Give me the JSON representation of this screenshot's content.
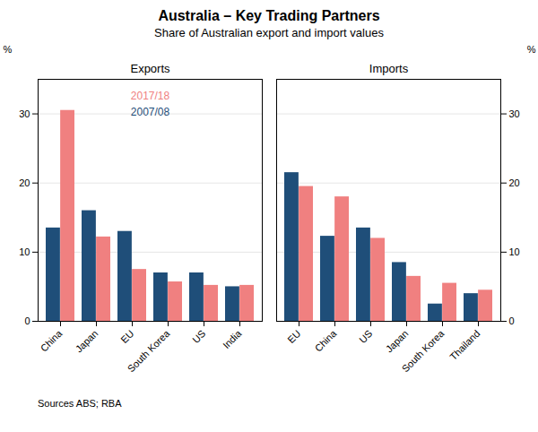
{
  "title": "Australia – Key Trading Partners",
  "subtitle": "Share of Australian export and import values",
  "source": "Sources ABS; RBA",
  "chart_data": [
    {
      "type": "bar",
      "title": "Exports",
      "ylabel": "%",
      "categories": [
        "China",
        "Japan",
        "EU",
        "South Korea",
        "US",
        "India"
      ],
      "series": [
        {
          "name": "2007/08",
          "color": "#1f4e79",
          "values": [
            13.5,
            16.0,
            13.0,
            7.0,
            7.0,
            5.0
          ]
        },
        {
          "name": "2017/18",
          "color": "#f08080",
          "values": [
            30.5,
            12.2,
            7.5,
            5.7,
            5.2,
            5.2
          ]
        }
      ],
      "ylim": [
        0,
        35
      ],
      "yticks": [
        0,
        10,
        20,
        30
      ],
      "grid": true,
      "legend": "upper center"
    },
    {
      "type": "bar",
      "title": "Imports",
      "ylabel": "%",
      "categories": [
        "EU",
        "China",
        "US",
        "Japan",
        "South Korea",
        "Thailand"
      ],
      "series": [
        {
          "name": "2007/08",
          "color": "#1f4e79",
          "values": [
            21.5,
            12.3,
            13.5,
            8.5,
            2.5,
            4.0
          ]
        },
        {
          "name": "2017/18",
          "color": "#f08080",
          "values": [
            19.5,
            18.0,
            12.0,
            6.5,
            5.5,
            4.5
          ]
        }
      ],
      "ylim": [
        0,
        35
      ],
      "yticks": [
        0,
        10,
        20,
        30
      ],
      "grid": true
    }
  ]
}
